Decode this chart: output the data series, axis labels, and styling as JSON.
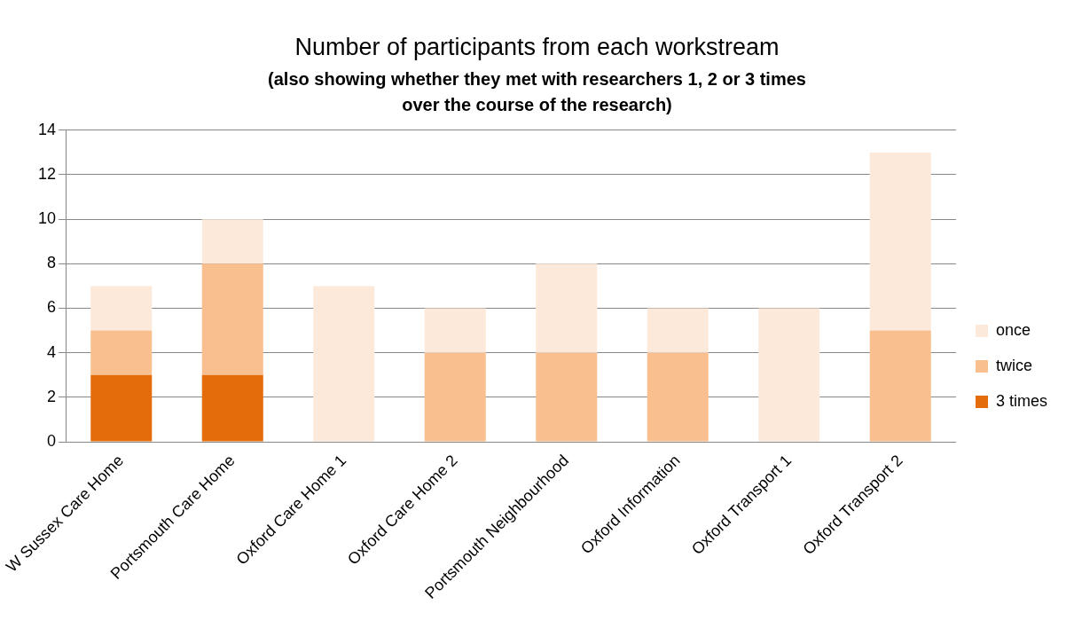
{
  "chart_data": {
    "type": "bar",
    "title": "Number of participants from each workstream",
    "subtitle": "(also showing whether they met with researchers 1, 2 or 3 times over the course of the research)",
    "categories": [
      "W Sussex Care Home",
      "Portsmouth Care Home",
      "Oxford Care Home 1",
      "Oxford Care Home 2",
      "Portsmouth Neighbourhood",
      "Oxford Information",
      "Oxford Transport 1",
      "Oxford Transport 2"
    ],
    "stacked": true,
    "series": [
      {
        "name": "3 times",
        "color": "#e46c0a",
        "values": [
          3,
          3,
          0,
          0,
          0,
          0,
          0,
          0
        ]
      },
      {
        "name": "twice",
        "color": "#f9bf8f",
        "values": [
          2,
          5,
          0,
          4,
          4,
          4,
          0,
          5
        ]
      },
      {
        "name": "once",
        "color": "#fde9d9",
        "values": [
          2,
          2,
          7,
          2,
          4,
          2,
          6,
          8
        ]
      }
    ],
    "ylim": [
      0,
      14
    ],
    "yticks": [
      0,
      2,
      4,
      6,
      8,
      10,
      12,
      14
    ],
    "grid": "y",
    "legend": "right"
  }
}
